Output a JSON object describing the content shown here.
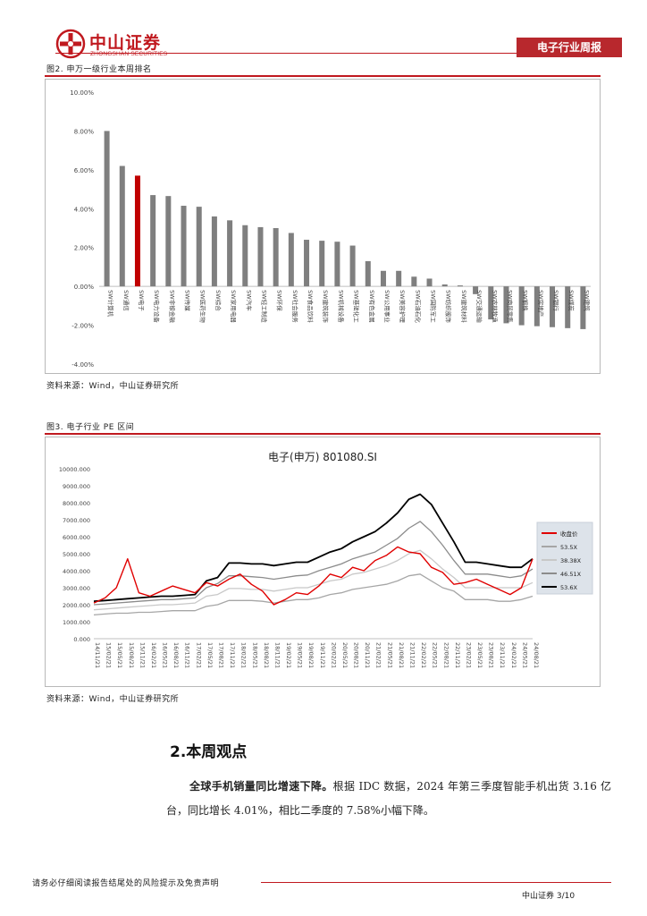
{
  "header": {
    "logo_cn": "中山证券",
    "logo_en": "ZHONGSHAN SECURITIES",
    "section_tag": "电子行业周报"
  },
  "figure2": {
    "caption": "图2. 申万一级行业本周排名",
    "source": "资料来源：Wind，中山证券研究所"
  },
  "figure3": {
    "caption": "图3. 电子行业 PE 区间",
    "source": "资料来源：Wind，中山证券研究所"
  },
  "chart_data": [
    {
      "type": "bar",
      "title": "",
      "ylim": [
        -4,
        10
      ],
      "yticks": [
        "10.00%",
        "8.00%",
        "6.00%",
        "4.00%",
        "2.00%",
        "0.00%",
        "-2.00%",
        "-4.00%"
      ],
      "categories": [
        "SW计算机",
        "SW通信",
        "SW电子",
        "SW电力设备",
        "SW非银金融",
        "SW传媒",
        "SW医药生物",
        "SW综合",
        "SW家用电器",
        "SW汽车",
        "SW轻工制造",
        "SW环保",
        "SW社会服务",
        "SW食品饮料",
        "SW建筑装饰",
        "SW机械设备",
        "SW基础化工",
        "SW有色金属",
        "SW公用事业",
        "SW美容护理",
        "SW石油石化",
        "SW国防军工",
        "SW纺织服饰",
        "SW建筑材料",
        "SW交通运输",
        "SW农林牧渔",
        "SW商贸零售",
        "SW钢铁",
        "SW房地产",
        "SW银行",
        "SW煤炭",
        "SW建筑"
      ],
      "values": [
        8.0,
        6.2,
        5.7,
        4.7,
        4.65,
        4.15,
        4.1,
        3.6,
        3.4,
        3.15,
        3.05,
        3.0,
        2.75,
        2.4,
        2.35,
        2.3,
        2.1,
        1.3,
        0.8,
        0.8,
        0.5,
        0.4,
        0.1,
        0.05,
        -0.4,
        -1.7,
        -1.9,
        -2.0,
        -2.05,
        -2.1,
        -2.15,
        -2.2
      ],
      "highlight_index": 2,
      "colors": {
        "default": "#7f7f7f",
        "highlight": "#c00000"
      }
    },
    {
      "type": "line",
      "title": "电子(申万) 801080.SI",
      "ylim": [
        0,
        10000
      ],
      "yticks": [
        "10000.000",
        "9000.000",
        "8000.000",
        "7000.000",
        "6000.000",
        "5000.000",
        "4000.000",
        "3000.000",
        "2000.000",
        "1000.000",
        "0.000"
      ],
      "xticks": [
        "14/11/21",
        "15/02/21",
        "15/05/21",
        "15/08/21",
        "15/11/21",
        "16/02/21",
        "16/05/21",
        "16/08/21",
        "16/11/21",
        "17/02/21",
        "17/05/21",
        "17/08/21",
        "17/11/21",
        "18/02/21",
        "18/05/21",
        "18/08/21",
        "18/11/21",
        "19/02/21",
        "19/05/21",
        "19/08/21",
        "19/11/21",
        "20/02/21",
        "20/05/21",
        "20/08/21",
        "20/11/21",
        "21/02/21",
        "21/05/21",
        "21/08/21",
        "21/11/21",
        "22/02/21",
        "22/05/21",
        "22/08/21",
        "22/11/21",
        "23/02/21",
        "23/05/21",
        "23/08/21",
        "23/11/21",
        "24/02/21",
        "24/05/21",
        "24/08/21"
      ],
      "series": [
        {
          "name": "收盘价",
          "color": "#e00000",
          "values": [
            2100,
            2400,
            3000,
            4700,
            2700,
            2500,
            2800,
            3100,
            2900,
            2700,
            3300,
            3100,
            3500,
            3800,
            3200,
            2800,
            2000,
            2300,
            2700,
            2600,
            3100,
            3800,
            3600,
            4200,
            4000,
            4600,
            4900,
            5400,
            5100,
            5000,
            4200,
            3900,
            3200,
            3300,
            3500,
            3200,
            2900,
            2600,
            3000,
            4700
          ]
        },
        {
          "name": "",
          "color": "#a6a6a6",
          "values": [
            1400,
            1450,
            1500,
            1500,
            1550,
            1550,
            1600,
            1650,
            1650,
            1650,
            1900,
            2000,
            2250,
            2250,
            2250,
            2200,
            2100,
            2200,
            2300,
            2300,
            2400,
            2600,
            2700,
            2900,
            3000,
            3100,
            3200,
            3400,
            3700,
            3800,
            3400,
            3000,
            2800,
            2300,
            2300,
            2300,
            2200,
            2200,
            2300,
            2500
          ]
        },
        {
          "name": "",
          "color": "#c8c8c8",
          "values": [
            1700,
            1750,
            1800,
            1850,
            1900,
            1950,
            2000,
            2000,
            2050,
            2100,
            2500,
            2600,
            2950,
            2950,
            2900,
            2900,
            2800,
            2900,
            3000,
            3000,
            3200,
            3400,
            3500,
            3800,
            3900,
            4100,
            4300,
            4600,
            5000,
            5200,
            4700,
            4100,
            3600,
            3000,
            3000,
            3000,
            3000,
            3000,
            3000,
            3300
          ]
        },
        {
          "name": "",
          "color": "#8c8c8c",
          "values": [
            2000,
            2050,
            2100,
            2150,
            2200,
            2250,
            2300,
            2300,
            2350,
            2400,
            3000,
            3250,
            3700,
            3700,
            3650,
            3600,
            3500,
            3600,
            3700,
            3750,
            4000,
            4200,
            4400,
            4700,
            4900,
            5100,
            5500,
            5900,
            6500,
            6900,
            6300,
            5500,
            4600,
            3800,
            3800,
            3800,
            3700,
            3600,
            3700,
            4100
          ]
        },
        {
          "name": "",
          "color": "#000000",
          "values": [
            2200,
            2250,
            2300,
            2350,
            2400,
            2450,
            2500,
            2500,
            2550,
            2600,
            3400,
            3600,
            4450,
            4450,
            4400,
            4400,
            4300,
            4400,
            4500,
            4500,
            4800,
            5100,
            5300,
            5700,
            6000,
            6300,
            6800,
            7400,
            8200,
            8500,
            7900,
            6800,
            5700,
            4500,
            4500,
            4400,
            4300,
            4200,
            4200,
            4700
          ]
        }
      ],
      "legend": [
        "收盘价",
        "53.5X",
        "38.38X",
        "46.51X",
        "53.6X"
      ],
      "legend_position": "right"
    }
  ],
  "section": {
    "heading": "2.本周观点",
    "para_bold": "全球手机销量同比增速下降。",
    "para_text": "根据 IDC 数据，2024 年第三季度智能手机出货 3.16 亿台，同比增长 4.01%，相比二季度的 7.58%小幅下降。"
  },
  "footer": {
    "disclaimer": "请务必仔细阅读报告结尾处的风险提示及免责声明",
    "page": "中山证券 3/10"
  }
}
